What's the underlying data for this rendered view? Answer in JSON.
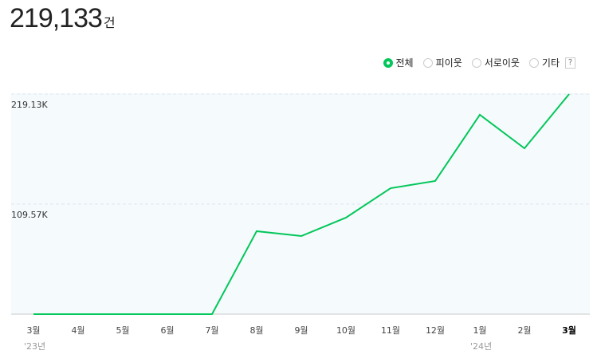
{
  "header": {
    "total": "219,133",
    "unit": "건"
  },
  "filters": [
    {
      "label": "전체",
      "selected": true
    },
    {
      "label": "피이웃",
      "selected": false
    },
    {
      "label": "서로이웃",
      "selected": false
    },
    {
      "label": "기타",
      "selected": false
    }
  ],
  "help_label": "?",
  "chart_data": {
    "type": "line",
    "categories": [
      "3월",
      "4월",
      "5월",
      "6월",
      "7월",
      "8월",
      "9월",
      "10월",
      "11월",
      "12월",
      "1월",
      "2월",
      "3월"
    ],
    "year_labels": [
      {
        "index": 0,
        "label": "'23년"
      },
      {
        "index": 10,
        "label": "'24년"
      }
    ],
    "series": [
      {
        "name": "전체",
        "color": "#03c75a",
        "values": [
          0,
          0,
          0,
          0,
          0,
          82600,
          77800,
          96100,
          125400,
          132600,
          198500,
          165100,
          219133
        ]
      }
    ],
    "y_ticks": [
      {
        "value": 109565,
        "label": "109.57K"
      },
      {
        "value": 219130,
        "label": "219.13K"
      }
    ],
    "ylim": [
      0,
      219130
    ],
    "grid": true
  }
}
